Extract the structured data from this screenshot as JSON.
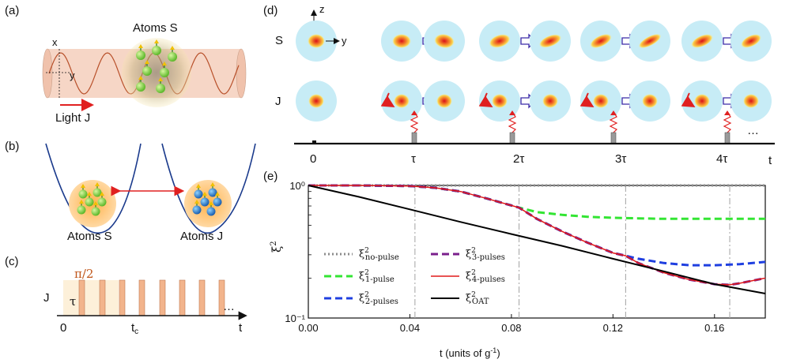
{
  "panels": {
    "a": {
      "label": "(a)",
      "atoms_title": "Atoms S",
      "axis_x": "x",
      "axis_y": "y",
      "light_label": "Light J"
    },
    "b": {
      "label": "(b)",
      "left_label": "Atoms S",
      "right_label": "Atoms J"
    },
    "c": {
      "label": "(c)",
      "pulse_label": "π/2",
      "row_label": "J",
      "tau": "τ",
      "origin": "0",
      "tc": "t",
      "tc_sub": "c",
      "t": "t",
      "ellipsis": "…"
    },
    "d": {
      "label": "(d)",
      "z": "z",
      "y": "y",
      "row_S": "S",
      "row_J": "J",
      "ticks": [
        "0",
        "τ",
        "2τ",
        "3τ",
        "4τ"
      ],
      "t": "t",
      "ellipsis": "…"
    },
    "e": {
      "label": "(e)",
      "ylabel": "ξ",
      "xlabel": "t (units of g",
      "xlabel_sup": "-1",
      "xlabel_close": ")"
    }
  },
  "colors": {
    "no_pulse": "#8c8c8c",
    "one_pulse": "#33e533",
    "two_pulse": "#1f3fe0",
    "three_pulse": "#7a1f8c",
    "four_pulse": "#e01a1a",
    "oat": "#000000",
    "accent_red": "#e02020",
    "pulse_fill": "#f2b48c",
    "sphere_bg": "#c7ecf6",
    "beam": "#f6d6c6",
    "well": "#1a3a8c"
  },
  "chart_data": {
    "type": "line",
    "title": "",
    "xlabel": "t (units of g⁻¹)",
    "ylabel": "ξ²",
    "xlim": [
      0.0,
      0.18
    ],
    "ylim": [
      0.1,
      1.0
    ],
    "yscale": "log",
    "xticks": [
      "0.00",
      "0.04",
      "0.08",
      "0.12",
      "0.16"
    ],
    "yticks": [
      "10⁰",
      "10⁻¹"
    ],
    "vlines": [
      0.042,
      0.083,
      0.125,
      0.166
    ],
    "legend_position": "lower-left",
    "series": [
      {
        "name": "ξ²no-pulse",
        "sub": "no-pulse",
        "color": "#8c8c8c",
        "style": "dotted",
        "x": [
          0,
          0.18
        ],
        "y": [
          1.0,
          1.0
        ]
      },
      {
        "name": "ξ²1-pulse",
        "sub": "1-pulse",
        "color": "#33e533",
        "style": "dashed",
        "x": [
          0,
          0.02,
          0.04,
          0.05,
          0.06,
          0.07,
          0.083,
          0.09,
          0.1,
          0.11,
          0.12,
          0.13,
          0.14,
          0.15,
          0.16,
          0.17,
          0.18
        ],
        "y": [
          1.0,
          1.0,
          0.99,
          0.96,
          0.9,
          0.8,
          0.68,
          0.63,
          0.6,
          0.58,
          0.57,
          0.565,
          0.56,
          0.56,
          0.56,
          0.56,
          0.56
        ]
      },
      {
        "name": "ξ²2-pulses",
        "sub": "2-pulses",
        "color": "#1f3fe0",
        "style": "dashed",
        "x": [
          0,
          0.02,
          0.04,
          0.05,
          0.06,
          0.07,
          0.083,
          0.09,
          0.1,
          0.11,
          0.12,
          0.125,
          0.13,
          0.14,
          0.15,
          0.16,
          0.17,
          0.18
        ],
        "y": [
          1.0,
          1.0,
          0.99,
          0.96,
          0.9,
          0.8,
          0.68,
          0.56,
          0.45,
          0.37,
          0.31,
          0.295,
          0.28,
          0.26,
          0.25,
          0.25,
          0.255,
          0.265
        ]
      },
      {
        "name": "ξ²3-pulses",
        "sub": "3-pulses",
        "color": "#7a1f8c",
        "style": "dashed",
        "x": [
          0,
          0.02,
          0.04,
          0.05,
          0.06,
          0.07,
          0.083,
          0.09,
          0.1,
          0.11,
          0.12,
          0.125,
          0.13,
          0.14,
          0.15,
          0.16,
          0.166,
          0.17,
          0.18
        ],
        "y": [
          1.0,
          1.0,
          0.99,
          0.96,
          0.9,
          0.8,
          0.68,
          0.56,
          0.45,
          0.37,
          0.31,
          0.295,
          0.26,
          0.22,
          0.195,
          0.18,
          0.178,
          0.183,
          0.2
        ]
      },
      {
        "name": "ξ²4-pulses",
        "sub": "4-pulses",
        "color": "#e01a1a",
        "style": "solid",
        "x": [
          0,
          0.02,
          0.04,
          0.05,
          0.06,
          0.07,
          0.083,
          0.09,
          0.1,
          0.11,
          0.12,
          0.125,
          0.13,
          0.14,
          0.15,
          0.16,
          0.166,
          0.17,
          0.18
        ],
        "y": [
          1.0,
          1.0,
          0.99,
          0.96,
          0.9,
          0.8,
          0.68,
          0.56,
          0.45,
          0.37,
          0.31,
          0.295,
          0.26,
          0.22,
          0.195,
          0.18,
          0.178,
          0.183,
          0.2
        ]
      },
      {
        "name": "ξ²OAT",
        "sub": "OAT",
        "color": "#000000",
        "style": "solid",
        "x": [
          0,
          0.02,
          0.04,
          0.06,
          0.08,
          0.1,
          0.12,
          0.14,
          0.16,
          0.18
        ],
        "y": [
          1.0,
          0.82,
          0.66,
          0.53,
          0.43,
          0.35,
          0.28,
          0.225,
          0.18,
          0.153
        ]
      }
    ]
  }
}
